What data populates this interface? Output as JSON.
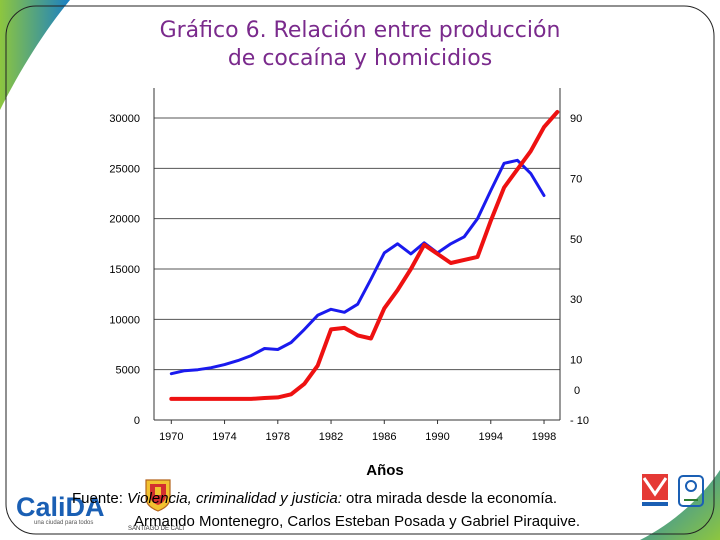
{
  "title": {
    "line1": "Gráfico 6. Relación entre producción",
    "line2": "de cocaína y homicidios"
  },
  "source": {
    "prefix": "Fuente: ",
    "book": "Violencia, criminalidad y justicia:",
    "rest": " otra mirada desde la economía.",
    "authors": "Armando Montenegro, Carlos Esteban Posada y Gabriel Piraquive."
  },
  "logos": {
    "cali": "CaliDA",
    "cali_tagline": "una ciudad para todos",
    "crest_caption": "SANTIAGO DE CALI"
  },
  "colors": {
    "homicides": "#1a1aee",
    "cocaine": "#ee1111",
    "purple": "#6b2c8a",
    "gradient_green": "#8dc63f",
    "gradient_blue": "#1a7fc4"
  },
  "chart_data": {
    "type": "line",
    "xlabel": "Años",
    "ylabel_left": "",
    "ylabel_right": "",
    "x_ticks": [
      1970,
      1974,
      1978,
      1982,
      1986,
      1990,
      1994,
      1998
    ],
    "xlim": [
      1968.7,
      1999.2
    ],
    "y_left_ticks": [
      0,
      5000,
      10000,
      15000,
      20000,
      25000,
      30000
    ],
    "y_left_lim": [
      0,
      30000
    ],
    "y_right_ticks": [
      -10,
      10,
      30,
      50,
      70,
      90
    ],
    "y_right_extra": [
      0
    ],
    "y_right_lim": [
      -10,
      90
    ],
    "grid": true,
    "series": [
      {
        "name": "",
        "color": "#1a1aee",
        "axis": "left",
        "points": [
          [
            1970,
            4600
          ],
          [
            1971,
            4900
          ],
          [
            1972,
            5000
          ],
          [
            1973,
            5200
          ],
          [
            1974,
            5500
          ],
          [
            1975,
            5900
          ],
          [
            1976,
            6400
          ],
          [
            1977,
            7100
          ],
          [
            1978,
            7000
          ],
          [
            1979,
            7700
          ],
          [
            1980,
            9000
          ],
          [
            1981,
            10400
          ],
          [
            1982,
            11000
          ],
          [
            1983,
            10700
          ],
          [
            1984,
            11500
          ],
          [
            1985,
            14000
          ],
          [
            1986,
            16600
          ],
          [
            1987,
            17500
          ],
          [
            1988,
            16500
          ],
          [
            1989,
            17600
          ],
          [
            1990,
            16600
          ],
          [
            1991,
            17500
          ],
          [
            1992,
            18200
          ],
          [
            1993,
            20000
          ],
          [
            1994,
            22800
          ],
          [
            1995,
            25500
          ],
          [
            1996,
            25800
          ],
          [
            1997,
            24500
          ],
          [
            1998,
            22300
          ]
        ]
      },
      {
        "name": "",
        "color": "#ee1111",
        "axis": "right",
        "points": [
          [
            1970,
            -3
          ],
          [
            1971,
            -3
          ],
          [
            1972,
            -3
          ],
          [
            1973,
            -3
          ],
          [
            1974,
            -3
          ],
          [
            1975,
            -3
          ],
          [
            1976,
            -3
          ],
          [
            1977,
            -2.7
          ],
          [
            1978,
            -2.5
          ],
          [
            1979,
            -1.5
          ],
          [
            1980,
            2
          ],
          [
            1981,
            8
          ],
          [
            1982,
            20
          ],
          [
            1983,
            20.5
          ],
          [
            1984,
            18
          ],
          [
            1985,
            17
          ],
          [
            1986,
            27
          ],
          [
            1987,
            33
          ],
          [
            1988,
            40
          ],
          [
            1989,
            48
          ],
          [
            1990,
            45
          ],
          [
            1991,
            42
          ],
          [
            1992,
            43
          ],
          [
            1993,
            44
          ],
          [
            1994,
            56
          ],
          [
            1995,
            67
          ],
          [
            1996,
            73
          ],
          [
            1997,
            79
          ],
          [
            1998,
            87
          ],
          [
            1999,
            92
          ]
        ]
      }
    ]
  }
}
